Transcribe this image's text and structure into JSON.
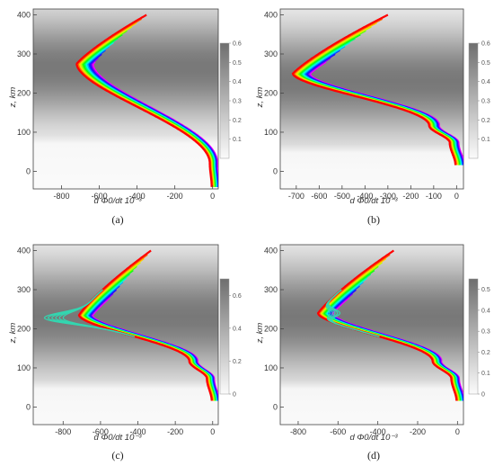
{
  "chart_data": [
    {
      "type": "line",
      "panel_label": "(a)",
      "xlabel": "d Φ0/dt 10⁻³",
      "ylabel": "z, km",
      "xlim": [
        -950,
        30
      ],
      "ylim": [
        -45,
        415
      ],
      "xticks": [
        -800,
        -600,
        -400,
        -200,
        0
      ],
      "yticks": [
        0,
        100,
        200,
        300,
        400
      ],
      "colorbar": {
        "range": [
          0,
          0.6
        ],
        "ticks": [
          "0.1",
          "0.2",
          "0.3",
          "0.4",
          "0.5",
          "0.6"
        ]
      },
      "curve": {
        "top_z": 400,
        "top_x": -350,
        "bend_z": 275,
        "bend_x": -720,
        "knee_z": 20,
        "knee_x": -15,
        "knee_w": 0,
        "bottom_z": -40,
        "bottom_x": -5
      },
      "family_size": 13,
      "family_spread": 110,
      "extra_curves": null,
      "background": {
        "dark_center_z": 265,
        "dark_width": 135,
        "light_below_z": 80
      }
    },
    {
      "type": "line",
      "panel_label": "(b)",
      "xlabel": "d Φ0/dt 10⁻³",
      "ylabel": "z, km",
      "xlim": [
        -770,
        30
      ],
      "ylim": [
        -45,
        415
      ],
      "xticks": [
        -700,
        -600,
        -500,
        -400,
        -300,
        -200,
        -100,
        0
      ],
      "yticks": [
        0,
        100,
        200,
        300,
        400
      ],
      "colorbar": {
        "range": [
          0,
          0.6
        ],
        "ticks": [
          "0.1",
          "0.2",
          "0.3",
          "0.4",
          "0.5",
          "0.6"
        ]
      },
      "curve": {
        "top_z": 400,
        "top_x": -300,
        "bend_z": 250,
        "bend_x": -715,
        "knee_z": 95,
        "knee_x": -120,
        "knee_w": 22,
        "bottom_z": 15,
        "bottom_x": -5
      },
      "family_size": 13,
      "family_spread": 110,
      "extra_curves": null,
      "background": {
        "dark_center_z": 230,
        "dark_width": 135,
        "light_below_z": 55
      }
    },
    {
      "type": "line",
      "panel_label": "(c)",
      "xlabel": "d Φ0/dt 10⁻³",
      "ylabel": "z, km",
      "xlim": [
        -960,
        30
      ],
      "ylim": [
        -45,
        415
      ],
      "xticks": [
        -800,
        -600,
        -400,
        -200,
        0
      ],
      "yticks": [
        0,
        100,
        200,
        300,
        400
      ],
      "colorbar": {
        "range": [
          0,
          0.7
        ],
        "ticks": [
          "0",
          "0.2",
          "0.4",
          "0.6"
        ]
      },
      "curve": {
        "top_z": 400,
        "top_x": -330,
        "bend_z": 235,
        "bend_x": -715,
        "knee_z": 95,
        "knee_x": -125,
        "knee_w": 22,
        "bottom_z": 15,
        "bottom_x": -5
      },
      "family_size": 13,
      "family_spread": 110,
      "extra_curves": {
        "color": "#33d6b0",
        "count": 6,
        "peak_z": 228,
        "peak_x_min": -900,
        "peak_x_max": -800
      },
      "background": {
        "dark_center_z": 230,
        "dark_width": 140,
        "light_below_z": 55
      }
    },
    {
      "type": "line",
      "panel_label": "(d)",
      "xlabel": "d Φ0/dt 10⁻³",
      "ylabel": "z, km",
      "xlim": [
        -890,
        30
      ],
      "ylim": [
        -45,
        415
      ],
      "xticks": [
        -800,
        -600,
        -400,
        -200,
        0
      ],
      "yticks": [
        0,
        100,
        200,
        300,
        400
      ],
      "colorbar": {
        "range": [
          0,
          0.55
        ],
        "ticks": [
          "0",
          "0.1",
          "0.2",
          "0.3",
          "0.4",
          "0.5"
        ]
      },
      "curve": {
        "top_z": 400,
        "top_x": -320,
        "bend_z": 240,
        "bend_x": -700,
        "knee_z": 95,
        "knee_x": -125,
        "knee_w": 22,
        "bottom_z": 15,
        "bottom_x": -5
      },
      "family_size": 13,
      "family_spread": 110,
      "extra_curves": {
        "color": "#33d6b0",
        "count": 5,
        "peak_z": 240,
        "peak_x_min": -640,
        "peak_x_max": -590
      },
      "background": {
        "dark_center_z": 230,
        "dark_width": 140,
        "light_below_z": 55
      }
    }
  ]
}
